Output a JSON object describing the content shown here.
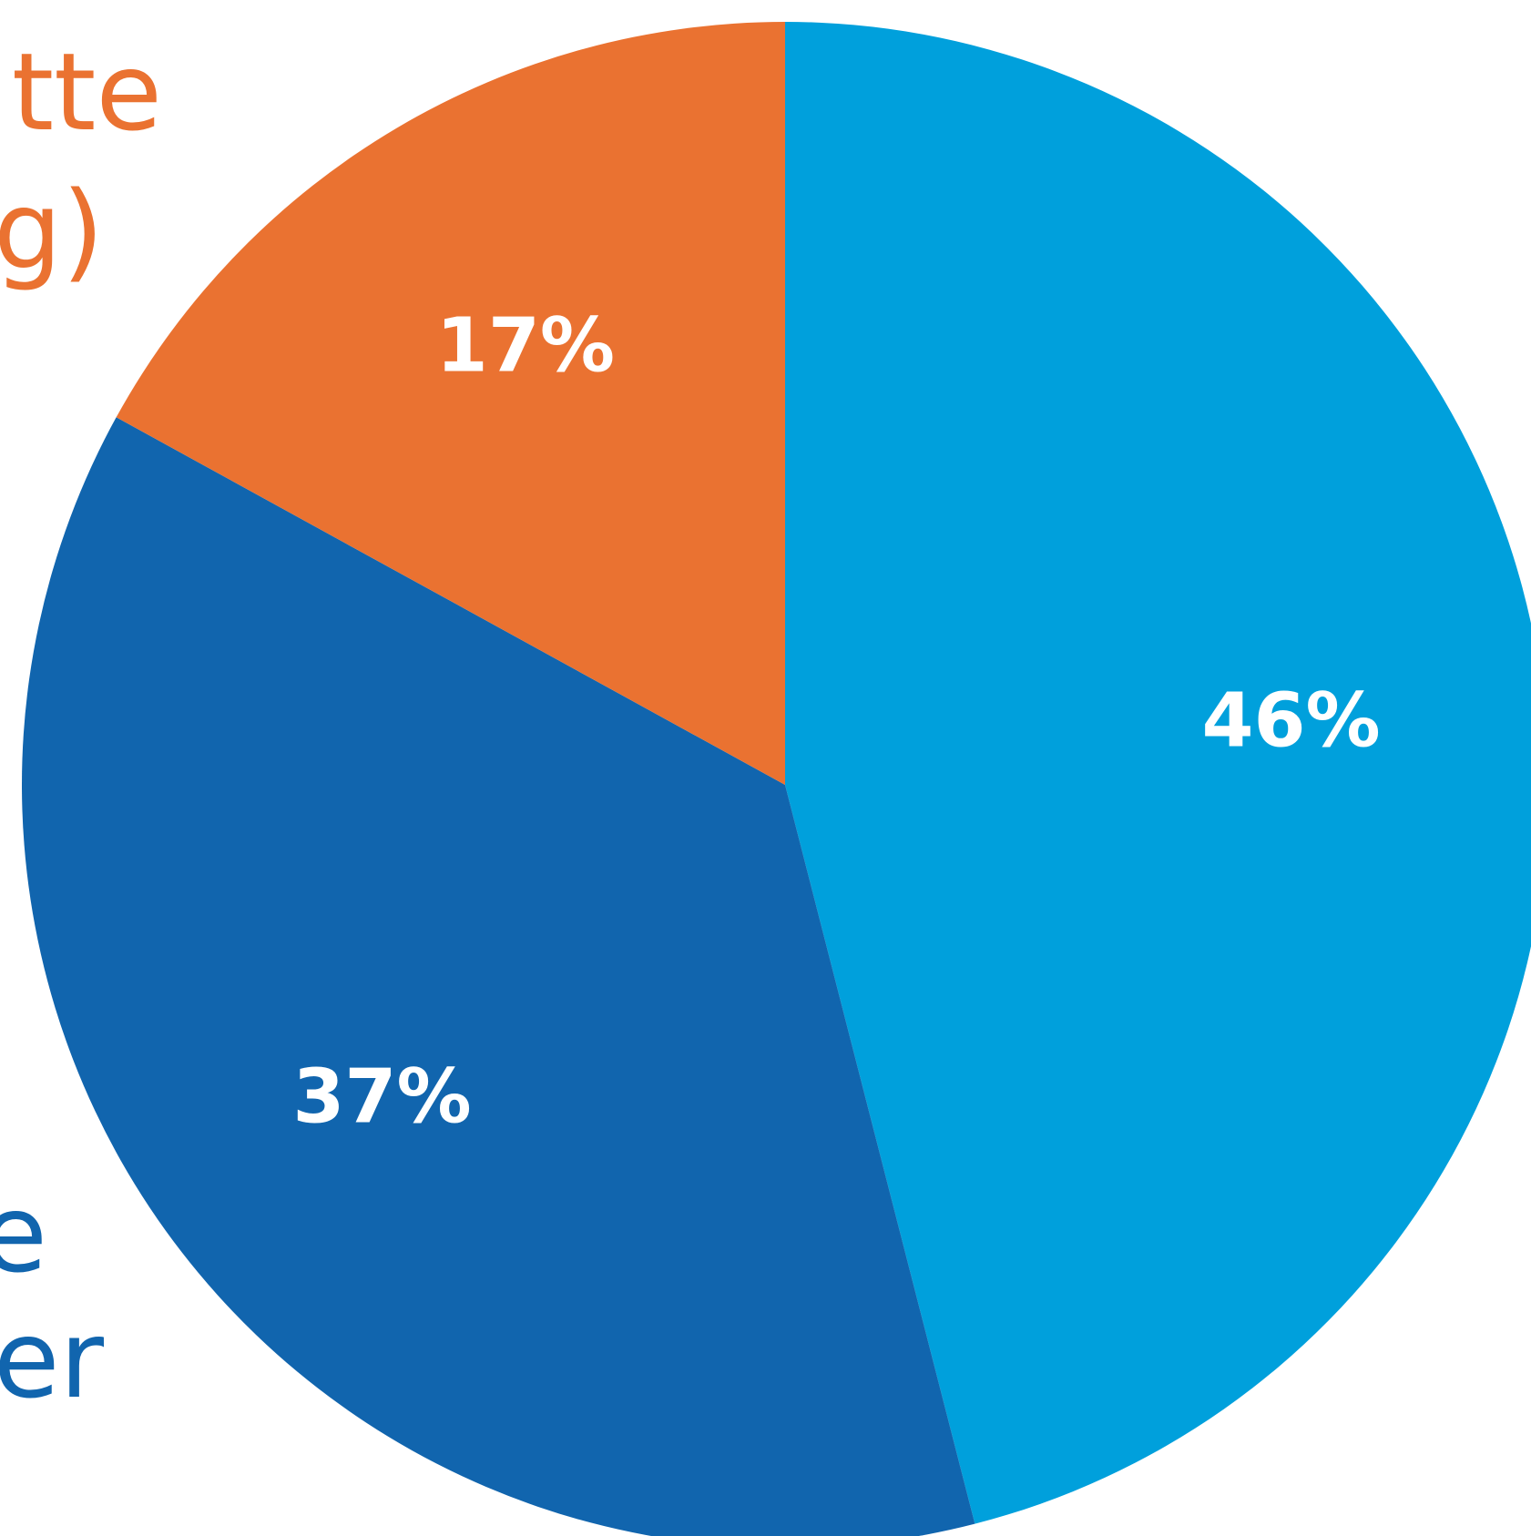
{
  "chart_data": {
    "type": "pie",
    "start_angle_deg": 0,
    "direction": "clockwise",
    "slices": [
      {
        "label": "46%",
        "value": 46,
        "color": "#00A0DC"
      },
      {
        "label": "37%",
        "value": 37,
        "color": "#1165AE"
      },
      {
        "label": "17%",
        "value": 17,
        "color": "#EA7231"
      }
    ],
    "side_text_fragments": [
      {
        "lines": [
          "tte",
          "g)"
        ],
        "color": "#EA7231"
      },
      {
        "lines": [
          "e",
          "er"
        ],
        "color": "#1165AE"
      }
    ]
  }
}
